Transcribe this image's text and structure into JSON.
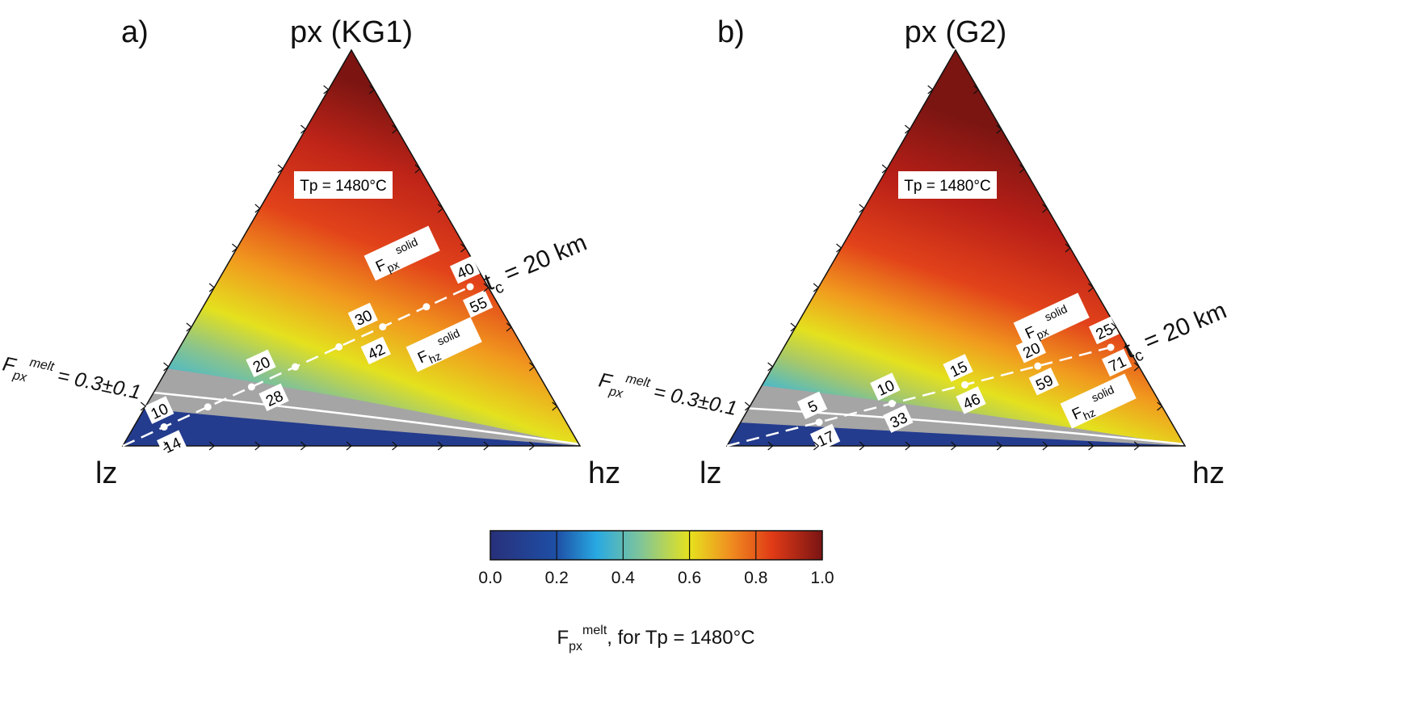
{
  "chart_data": [
    {
      "type": "heatmap",
      "subtype": "ternary",
      "panel": "a)",
      "title": "px (KG1)",
      "corners": {
        "top": "px (KG1)",
        "left": "lz",
        "right": "hz"
      },
      "tp_label": "Tp = 1480°C",
      "melt_label": {
        "main": "F",
        "sub": "px",
        "sup": "melt",
        "value": " = 0.3±0.1"
      },
      "tc_label": {
        "main": "t",
        "sub": "c",
        "value": " = 20 km"
      },
      "fpx_solid": {
        "main": "F",
        "sub": "px",
        "sup": "solid"
      },
      "fhz_solid": {
        "main": "F",
        "sub": "hz",
        "sup": "solid"
      },
      "fpx_solid_values": [
        "10",
        "20",
        "30",
        "40"
      ],
      "fhz_solid_values": [
        "14",
        "28",
        "42",
        "55"
      ]
    },
    {
      "type": "heatmap",
      "subtype": "ternary",
      "panel": "b)",
      "title": "px (G2)",
      "corners": {
        "top": "px (G2)",
        "left": "lz",
        "right": "hz"
      },
      "tp_label": "Tp = 1480°C",
      "melt_label": {
        "main": "F",
        "sub": "px",
        "sup": "melt",
        "value": " = 0.3±0.1"
      },
      "tc_label": {
        "main": "t",
        "sub": "c",
        "value": " = 20 km"
      },
      "fpx_solid": {
        "main": "F",
        "sub": "px",
        "sup": "solid"
      },
      "fhz_solid": {
        "main": "F",
        "sub": "hz",
        "sup": "solid"
      },
      "fpx_solid_values": [
        "5",
        "10",
        "15",
        "20",
        "25"
      ],
      "fhz_solid_values": [
        "17",
        "33",
        "46",
        "59",
        "71"
      ]
    }
  ],
  "colorbar": {
    "ticks": [
      "0.0",
      "0.2",
      "0.4",
      "0.6",
      "0.8",
      "1.0"
    ],
    "range": [
      0,
      1
    ],
    "colors": [
      "#26327f",
      "#1f4fa8",
      "#2aa8e0",
      "#7ec49a",
      "#e6e21e",
      "#f08a1c",
      "#e03a16",
      "#7a1414"
    ],
    "label": {
      "main": "F",
      "sub": "px",
      "sup": "melt",
      "rest": ", for Tp = 1480°C"
    }
  }
}
